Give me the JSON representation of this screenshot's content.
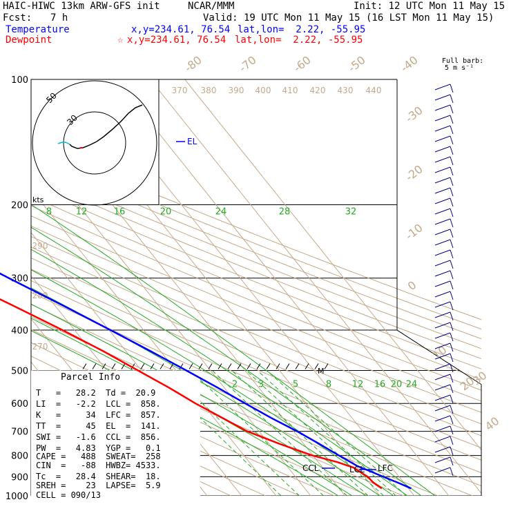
{
  "header": {
    "model": "HAIC-HIWC 13km ARW-GFS init",
    "org": "NCAR/MMM",
    "init": "Init: 12 UTC Mon 11 May 15",
    "fcst_label": "Fcst:",
    "fcst_hours": "7 h",
    "valid": "Valid: 19 UTC Mon 11 May 15 (16 LST Mon 11 May 15)",
    "temp_label": "Temperature",
    "temp_xy": "x,y=234.61, 76.54",
    "temp_latlon": "lat,lon=  2.22, -55.95",
    "dew_label": "Dewpoint",
    "dew_marker": "☆",
    "dew_xy": "x,y=234.61, 76.54",
    "dew_latlon": "lat,lon=  2.22, -55.95",
    "barb_title": "Full barb:",
    "barb_unit": "5 m s⁻¹"
  },
  "colors": {
    "temperature": "#0000ff",
    "dewpoint": "#ff0000",
    "isotherm": "#c4a98a",
    "dry_adiabat": "#c4a98a",
    "moist_adiabat": "#22aa22",
    "mixing_ratio": "#22aa22",
    "isobar": "#000000",
    "wind_barb": "#00008b",
    "hodo_tail": "#00bcd4"
  },
  "parcel_info": {
    "title": "Parcel Info",
    "rows": [
      "T   =   28.2  Td =  20.9",
      "LI  =   -2.2  LCL =  858.",
      "K   =     34  LFC =  857.",
      "TT  =     45  EL  =  141.",
      "SWI =   -1.6  CCL =  856.",
      "PW  =   4.83  YGP =   0.1",
      "CAPE =   488  SWEAT=  258",
      "CIN  =   -88  HWBZ= 4533.",
      "Tc  =   28.4  SHEAR=  18.",
      "SREH =    23  LAPSE=  5.9",
      "CELL = 090/13"
    ]
  },
  "hodograph": {
    "units": "kts",
    "ring_labels": [
      "50",
      "30"
    ]
  },
  "chart_data": {
    "type": "skew-t",
    "pressure_levels": [
      "100",
      "200",
      "300",
      "400",
      "500",
      "600",
      "700",
      "800",
      "900",
      "1000"
    ],
    "pressure_ticks": [
      100,
      200,
      300,
      400,
      500,
      600,
      700,
      800,
      900,
      1000
    ],
    "isotherm_labels": [
      "-80",
      "-70",
      "-60",
      "-50",
      "-40",
      "-30",
      "-20",
      "-10",
      "0",
      "10",
      "20",
      "30",
      "40"
    ],
    "isotherm_values": [
      -80,
      -70,
      -60,
      -50,
      -40,
      -30,
      -20,
      -10,
      0,
      10,
      20,
      30,
      40
    ],
    "theta_labels": [
      "370",
      "380",
      "390",
      "400",
      "410",
      "420",
      "430",
      "440",
      "290",
      "280",
      "270"
    ],
    "mixing_ratio_labels": [
      "2",
      "3",
      "5",
      "8",
      "12",
      "16",
      "20",
      "24"
    ],
    "moist_labels": [
      "8",
      "12",
      "16",
      "20",
      "24",
      "28",
      "32"
    ],
    "level_labels": {
      "el": "EL",
      "ccl": "CCL",
      "lcl": "LCL",
      "lfc": "LFC",
      "m": "M"
    },
    "temperature": {
      "name": "Temperature",
      "p": [
        960,
        930,
        900,
        870,
        850,
        800,
        750,
        700,
        650,
        600,
        550,
        500,
        450,
        400,
        350,
        300,
        270,
        250,
        230,
        200,
        175,
        150,
        141,
        125,
        115,
        100
      ],
      "t": [
        30.8,
        28.3,
        25.4,
        22.6,
        20.5,
        17.5,
        14.5,
        11.0,
        6.6,
        2.4,
        -1.9,
        -7.0,
        -12.8,
        -19.6,
        -27.5,
        -37.0,
        -43.2,
        -47.8,
        -53.0,
        -61.5,
        -67.8,
        -75.0,
        -77.5,
        -80.0,
        -79.4,
        -78.5
      ]
    },
    "dewpoint": {
      "name": "Dewpoint",
      "p": [
        960,
        930,
        900,
        880,
        856,
        830,
        800,
        750,
        700,
        650,
        600,
        550,
        500,
        450,
        400,
        350,
        320,
        300,
        270,
        250,
        230,
        200,
        180,
        160,
        140,
        125,
        115,
        100
      ],
      "t": [
        22.3,
        21.2,
        20.9,
        20.0,
        19.0,
        15.5,
        9.8,
        3.0,
        -3.5,
        -7.5,
        -12.0,
        -16.0,
        -21.0,
        -26.5,
        -33.5,
        -42.0,
        -48.0,
        -52.0,
        -63.5,
        -70.0,
        -75.5,
        -80.5,
        -80.5,
        -78.5,
        -77.0,
        -76.5,
        -76.0,
        -76.5
      ]
    }
  }
}
